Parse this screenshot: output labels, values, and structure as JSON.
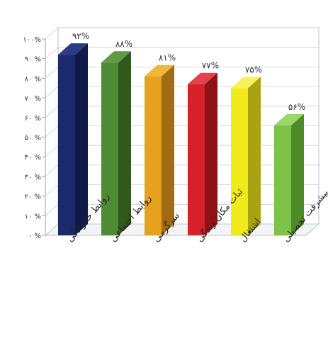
{
  "chart_data": {
    "type": "bar",
    "style": "3d-column",
    "direction": "rtl",
    "categories": [
      "روابط خانوادگی",
      "روابط اجتماعی",
      "سرگرمی",
      "ثبات مکان زندگی",
      "اشتغال",
      "پیشرفت تحصیلی"
    ],
    "values": [
      92,
      88,
      81,
      77,
      75,
      56
    ],
    "value_labels": [
      "۹۲%",
      "۸۸%",
      "۸۱%",
      "۷۷%",
      "۷۵%",
      "۵۶%"
    ],
    "ylim": [
      0,
      100
    ],
    "yticks": [
      0,
      10,
      20,
      30,
      40,
      50,
      60,
      70,
      80,
      90,
      100
    ],
    "ytick_labels": [
      "۰ %",
      "۱۰ %",
      "۲۰ %",
      "۳۰ %",
      "۴۰ %",
      "۵۰ %",
      "۶۰ %",
      "۷۰ %",
      "۸۰ %",
      "۹۰ %",
      "۱۰۰%"
    ],
    "grid": true,
    "colors": {
      "front": [
        "#1c2a6b",
        "#4f8a34",
        "#e5a21c",
        "#d6202a",
        "#f0ea1a",
        "#7ec24a"
      ],
      "side": [
        "#101a4a",
        "#2f5a1c",
        "#a26d12",
        "#8f1218",
        "#a9a312",
        "#4e8a26"
      ],
      "top": [
        "#2c3b86",
        "#5f9a44",
        "#f0b83a",
        "#e2434b",
        "#f7f25a",
        "#9ad66a"
      ]
    }
  }
}
